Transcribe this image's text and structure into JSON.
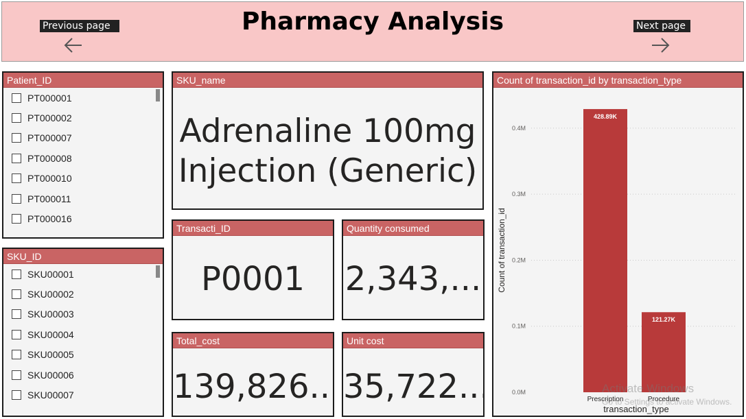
{
  "header": {
    "title": "Pharmacy Analysis",
    "prev_label": "Previous page",
    "next_label": "Next page"
  },
  "patient_slicer": {
    "title": "Patient_ID",
    "items": [
      "PT000001",
      "PT000002",
      "PT000007",
      "PT000008",
      "PT000010",
      "PT000011",
      "PT000016"
    ]
  },
  "sku_slicer": {
    "title": "SKU_ID",
    "items": [
      "SKU00001",
      "SKU00002",
      "SKU00003",
      "SKU00004",
      "SKU00005",
      "SKU00006",
      "SKU00007"
    ]
  },
  "sku_name_card": {
    "title": "SKU_name",
    "line1": "Adrenaline 100mg",
    "line2": "Injection (Generic)"
  },
  "transaction_card": {
    "title": "Transacti_ID",
    "value": "P0001"
  },
  "quantity_card": {
    "title": "Quantity consumed",
    "value": "2,343,..."
  },
  "total_cost_card": {
    "title": "Total_cost",
    "value": "139,826..."
  },
  "unit_cost_card": {
    "title": "Unit cost",
    "value": "35,722..."
  },
  "chart_data": {
    "type": "bar",
    "title": "Count of transaction_id by transaction_type",
    "xlabel": "transaction_type",
    "ylabel": "Count of transaction_id",
    "categories": [
      "Prescription",
      "Procedure"
    ],
    "values": [
      428890,
      121270
    ],
    "data_labels": [
      "428.89K",
      "121.27K"
    ],
    "y_ticks": [
      0,
      100000,
      200000,
      300000,
      400000
    ],
    "y_tick_labels": [
      "0.0M",
      "0.1M",
      "0.2M",
      "0.3M",
      "0.4M"
    ],
    "ylim": [
      0,
      430000
    ],
    "bar_color": "#b83a3a",
    "grid": true
  },
  "watermark": {
    "line1": "Activate Windows",
    "line2": "Go to Settings to activate Windows."
  },
  "colors": {
    "header_bg": "#f9c7c7",
    "panel_head": "#c96464",
    "panel_bg": "#f4f4f4"
  }
}
